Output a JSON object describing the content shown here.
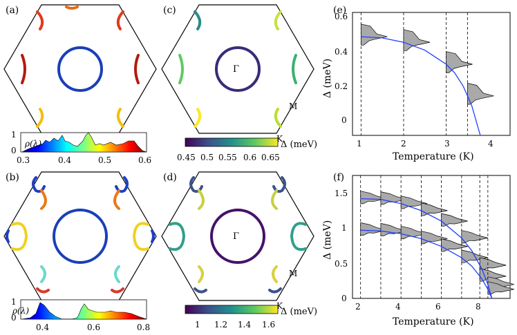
{
  "panels": {
    "a": {
      "label": "(a)",
      "rho_label": "ρ(λ)",
      "x_ticks": [
        "0.3",
        "0.4",
        "0.5",
        "0.6"
      ],
      "y_ticks": [
        "0",
        "1"
      ],
      "x_range": [
        0.3,
        0.6
      ]
    },
    "b": {
      "label": "(b)",
      "rho_label": "ρ(λ)",
      "x_ticks": [
        "0.4",
        "0.6",
        "0.8"
      ],
      "y_ticks": [
        "0",
        "1"
      ],
      "x_range": [
        0.3,
        0.8
      ]
    },
    "c": {
      "label": "(c)",
      "gamma": "Γ",
      "M": "M",
      "K": "K",
      "cbar_ticks": [
        "0.45",
        "0.5",
        "0.55",
        "0.6",
        "0.65"
      ],
      "cbar_label": "Δ (meV)",
      "cbar_range": [
        0.45,
        0.65
      ]
    },
    "d": {
      "label": "(d)",
      "gamma": "Γ",
      "M": "M",
      "K": "K",
      "cbar_ticks": [
        "1",
        "1.2",
        "1.4",
        "1.6"
      ],
      "cbar_label": "Δ (meV)",
      "cbar_range": [
        0.85,
        1.6
      ]
    },
    "e": {
      "label": "(e)",
      "xlabel": "Temperature (K)",
      "ylabel": "Δ (meV)",
      "x_ticks": [
        "1",
        "2",
        "3",
        "4"
      ],
      "y_ticks": [
        "0",
        "0.2",
        "0.4",
        "0.6"
      ]
    },
    "f": {
      "label": "(f)",
      "xlabel": "Temperature (K)",
      "ylabel": "Δ (meV)",
      "x_ticks": [
        "2",
        "4",
        "6",
        "8"
      ],
      "y_ticks": [
        "0",
        "0.5",
        "1",
        "1.5"
      ]
    }
  },
  "chart_data": [
    {
      "type": "line",
      "panel": "e",
      "x_label": "Temperature (K)",
      "y_label": "Δ (meV)",
      "xlim": [
        0.8,
        4.5
      ],
      "ylim": [
        0,
        0.7
      ],
      "temperatures": [
        1,
        2,
        3,
        3.5
      ],
      "series": [
        {
          "x": [
            1,
            1.5,
            2,
            2.5,
            3,
            3.2,
            3.4,
            3.6,
            3.8
          ],
          "values": [
            0.562,
            0.555,
            0.53,
            0.485,
            0.405,
            0.355,
            0.28,
            0.17,
            0.0
          ]
        }
      ]
    },
    {
      "type": "line",
      "panel": "f",
      "x_label": "Temperature (K)",
      "y_label": "Δ (meV)",
      "xlim": [
        1.6,
        9.4
      ],
      "ylim": [
        0,
        1.75
      ],
      "temperatures": [
        2,
        3,
        4,
        5,
        6,
        7,
        7.9,
        8.3
      ],
      "series": [
        {
          "x": [
            2,
            3,
            4,
            5,
            6,
            7,
            7.5,
            8,
            8.3,
            8.5
          ],
          "values": [
            1.42,
            1.41,
            1.35,
            1.25,
            1.1,
            0.86,
            0.68,
            0.42,
            0.2,
            0.0
          ]
        },
        {
          "x": [
            2,
            3,
            4,
            5,
            6,
            7,
            7.5,
            8,
            8.3,
            8.5
          ],
          "values": [
            0.97,
            0.96,
            0.92,
            0.85,
            0.74,
            0.58,
            0.46,
            0.28,
            0.13,
            0.0
          ]
        }
      ]
    }
  ],
  "colors": {
    "curve": "#1f3fff",
    "fill": "#a9a9a9"
  }
}
